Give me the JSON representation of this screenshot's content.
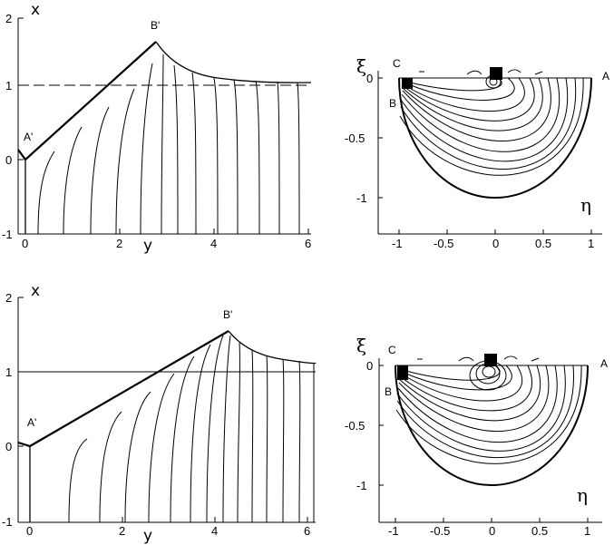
{
  "panels": [
    {
      "id": "top-left",
      "x_axis_label": "y",
      "y_axis_label": "x",
      "x_ticks": [
        "0",
        "2",
        "4",
        "6"
      ],
      "y_ticks": [
        "2",
        "1",
        "0",
        "-1"
      ],
      "points": {
        "a": "A'",
        "b": "B'"
      }
    },
    {
      "id": "top-right",
      "x_axis_label": "η",
      "y_axis_label": "ξ",
      "x_ticks": [
        "-1",
        "-0.5",
        "0",
        "0.5",
        "1"
      ],
      "y_ticks": [
        "0",
        "-0.5",
        "-1"
      ],
      "points": {
        "a": "A",
        "b": "B",
        "c": "C"
      }
    },
    {
      "id": "bottom-left",
      "x_axis_label": "y",
      "y_axis_label": "x",
      "x_ticks": [
        "0",
        "2",
        "4",
        "6"
      ],
      "y_ticks": [
        "2",
        "1",
        "0",
        "-1"
      ],
      "points": {
        "a": "A'",
        "b": "B'"
      }
    },
    {
      "id": "bottom-right",
      "x_axis_label": "η",
      "y_axis_label": "ξ",
      "x_ticks": [
        "-1",
        "-0.5",
        "0",
        "0.5",
        "1"
      ],
      "y_ticks": [
        "0",
        "-0.5",
        "-1"
      ],
      "points": {
        "a": "A",
        "b": "B",
        "c": "C"
      }
    }
  ]
}
